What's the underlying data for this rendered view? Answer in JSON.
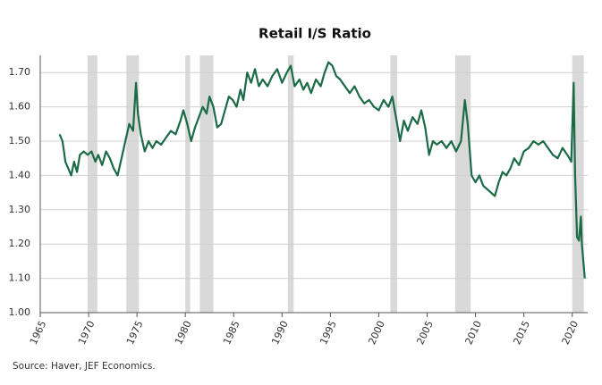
{
  "chart_data": {
    "type": "line",
    "title": "Retail I/S Ratio",
    "source": "Source:  Haver, JEF Economics.",
    "color": "#1b6b47",
    "grid": true,
    "shading_color": "#d9d9d9",
    "xlim": [
      1965,
      2021.6
    ],
    "ylim": [
      1.0,
      1.75
    ],
    "xticks": [
      1965,
      1970,
      1975,
      1980,
      1985,
      1990,
      1995,
      2000,
      2005,
      2010,
      2015,
      2020
    ],
    "yticks": [
      {
        "value": 1.0,
        "label": "1.00"
      },
      {
        "value": 1.1,
        "label": "1.10"
      },
      {
        "value": 1.2,
        "label": "1.20"
      },
      {
        "value": 1.3,
        "label": "1.30"
      },
      {
        "value": 1.4,
        "label": "1.40"
      },
      {
        "value": 1.5,
        "label": "1.50"
      },
      {
        "value": 1.6,
        "label": "1.60"
      },
      {
        "value": 1.7,
        "label": "1.70"
      }
    ],
    "recessions": [
      [
        1969.9,
        1970.9
      ],
      [
        1973.9,
        1975.2
      ],
      [
        1980.0,
        1980.5
      ],
      [
        1981.5,
        1982.9
      ],
      [
        1990.6,
        1991.2
      ],
      [
        2001.2,
        2001.9
      ],
      [
        2007.9,
        2009.5
      ],
      [
        2020.0,
        2021.2
      ]
    ],
    "x": [
      1967.0,
      1967.3,
      1967.6,
      1967.9,
      1968.2,
      1968.5,
      1968.8,
      1969.1,
      1969.5,
      1969.9,
      1970.3,
      1970.7,
      1971.0,
      1971.4,
      1971.8,
      1972.2,
      1972.6,
      1973.0,
      1973.4,
      1973.8,
      1974.2,
      1974.6,
      1974.9,
      1975.1,
      1975.4,
      1975.8,
      1976.2,
      1976.6,
      1977.0,
      1977.5,
      1978.0,
      1978.5,
      1979.0,
      1979.5,
      1979.8,
      1980.2,
      1980.6,
      1981.0,
      1981.4,
      1981.8,
      1982.2,
      1982.5,
      1982.9,
      1983.3,
      1983.7,
      1984.1,
      1984.5,
      1984.9,
      1985.3,
      1985.7,
      1986.0,
      1986.4,
      1986.8,
      1987.2,
      1987.6,
      1988.0,
      1988.5,
      1989.0,
      1989.5,
      1990.0,
      1990.5,
      1990.9,
      1991.3,
      1991.8,
      1992.2,
      1992.6,
      1993.0,
      1993.5,
      1994.0,
      1994.4,
      1994.8,
      1995.2,
      1995.6,
      1996.0,
      1996.5,
      1997.0,
      1997.5,
      1998.0,
      1998.5,
      1999.0,
      1999.5,
      2000.0,
      2000.5,
      2001.0,
      2001.4,
      2001.9,
      2002.2,
      2002.6,
      2003.0,
      2003.5,
      2004.0,
      2004.4,
      2004.8,
      2005.2,
      2005.6,
      2006.0,
      2006.5,
      2007.0,
      2007.5,
      2008.0,
      2008.5,
      2008.9,
      2009.2,
      2009.6,
      2010.0,
      2010.4,
      2010.8,
      2011.2,
      2011.6,
      2012.0,
      2012.4,
      2012.8,
      2013.2,
      2013.6,
      2014.0,
      2014.5,
      2015.0,
      2015.5,
      2016.0,
      2016.5,
      2017.0,
      2017.5,
      2018.0,
      2018.5,
      2019.0,
      2019.5,
      2019.9,
      2020.15,
      2020.3,
      2020.5,
      2020.7,
      2020.9,
      2021.0,
      2021.3
    ],
    "values": [
      1.52,
      1.5,
      1.44,
      1.42,
      1.4,
      1.44,
      1.41,
      1.46,
      1.47,
      1.46,
      1.47,
      1.44,
      1.46,
      1.43,
      1.47,
      1.45,
      1.42,
      1.4,
      1.45,
      1.5,
      1.55,
      1.53,
      1.67,
      1.58,
      1.52,
      1.47,
      1.5,
      1.48,
      1.5,
      1.49,
      1.51,
      1.53,
      1.52,
      1.56,
      1.59,
      1.55,
      1.5,
      1.54,
      1.57,
      1.6,
      1.58,
      1.63,
      1.6,
      1.54,
      1.55,
      1.59,
      1.63,
      1.62,
      1.6,
      1.65,
      1.62,
      1.7,
      1.67,
      1.71,
      1.66,
      1.68,
      1.66,
      1.69,
      1.71,
      1.67,
      1.7,
      1.72,
      1.66,
      1.68,
      1.65,
      1.67,
      1.64,
      1.68,
      1.66,
      1.7,
      1.73,
      1.72,
      1.69,
      1.68,
      1.66,
      1.64,
      1.66,
      1.63,
      1.61,
      1.62,
      1.6,
      1.59,
      1.62,
      1.6,
      1.63,
      1.55,
      1.5,
      1.56,
      1.53,
      1.57,
      1.55,
      1.59,
      1.54,
      1.46,
      1.5,
      1.49,
      1.5,
      1.48,
      1.5,
      1.47,
      1.5,
      1.62,
      1.55,
      1.4,
      1.38,
      1.4,
      1.37,
      1.36,
      1.35,
      1.34,
      1.38,
      1.41,
      1.4,
      1.42,
      1.45,
      1.43,
      1.47,
      1.48,
      1.5,
      1.49,
      1.5,
      1.48,
      1.46,
      1.45,
      1.48,
      1.46,
      1.44,
      1.67,
      1.4,
      1.22,
      1.21,
      1.28,
      1.2,
      1.1
    ]
  }
}
